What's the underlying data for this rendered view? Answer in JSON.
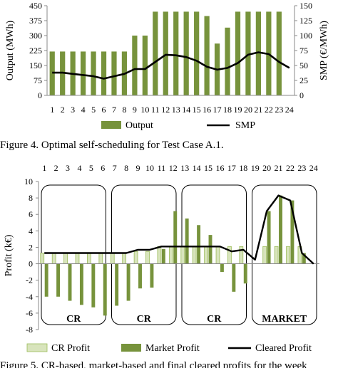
{
  "figure4_caption": "Figure 4. Optimal self-scheduling for Test Case A.1.",
  "figure5_caption": "Figure 5. CR-based, market-based and final cleared profits for the week",
  "chart_data": [
    {
      "type": "bar",
      "categories": [
        "1",
        "2",
        "3",
        "4",
        "5",
        "6",
        "7",
        "8",
        "9",
        "10",
        "11",
        "12",
        "13",
        "14",
        "15",
        "16",
        "17",
        "18",
        "19",
        "20",
        "21",
        "22",
        "23",
        "24"
      ],
      "series": [
        {
          "name": "Output",
          "type": "bar",
          "axis": "left",
          "color": "#77933c",
          "values": [
            220,
            220,
            220,
            220,
            220,
            220,
            220,
            220,
            300,
            300,
            420,
            420,
            420,
            420,
            420,
            398,
            260,
            340,
            420,
            420,
            420,
            420,
            420,
            0
          ]
        },
        {
          "name": "SMP",
          "type": "line",
          "axis": "right",
          "color": "#000000",
          "values": [
            38,
            38,
            36,
            34,
            32,
            28,
            32,
            36,
            44,
            44,
            56,
            68,
            67,
            64,
            58,
            48,
            43,
            46,
            54,
            68,
            72,
            69,
            56,
            46
          ]
        }
      ],
      "ylabel": "Output (MWh)",
      "ylabel_right": "SMP (€/MWh)",
      "ylim": [
        0,
        450
      ],
      "yticks": [
        0,
        75,
        150,
        225,
        300,
        375,
        450
      ],
      "ylim_right": [
        0,
        150
      ],
      "yticks_right": [
        0,
        25,
        50,
        75,
        100,
        125,
        150
      ],
      "legend_placement": "bottom"
    },
    {
      "type": "bar",
      "categories": [
        "1",
        "2",
        "3",
        "4",
        "5",
        "6",
        "7",
        "8",
        "9",
        "10",
        "11",
        "12",
        "13",
        "14",
        "15",
        "16",
        "17",
        "18",
        "19",
        "20",
        "21",
        "22",
        "23",
        "24"
      ],
      "series": [
        {
          "name": "CR Profit",
          "type": "bar",
          "color": "#d8e4bc",
          "values": [
            1.3,
            1.3,
            1.3,
            1.3,
            1.3,
            1.3,
            1.3,
            1.3,
            1.5,
            1.5,
            2.1,
            2.1,
            2.1,
            2.1,
            2.1,
            2.1,
            2.1,
            2.1,
            0,
            2.1,
            2.1,
            2.1,
            2.1,
            0
          ]
        },
        {
          "name": "Market Profit",
          "type": "bar",
          "color": "#77933c",
          "values": [
            -4.0,
            -4.0,
            -4.5,
            -5.0,
            -5.3,
            -6.3,
            -5.1,
            -4.5,
            -3.0,
            -2.9,
            1.8,
            6.4,
            5.5,
            4.7,
            3.5,
            -1.0,
            -3.4,
            -2.4,
            0,
            6.4,
            8.3,
            7.7,
            1.3,
            0
          ]
        },
        {
          "name": "Cleared Profit",
          "type": "line",
          "color": "#000000",
          "values": [
            1.3,
            1.3,
            1.3,
            1.3,
            1.3,
            1.3,
            1.3,
            1.3,
            1.7,
            1.7,
            2.1,
            2.1,
            2.1,
            2.1,
            2.1,
            2.1,
            1.5,
            1.7,
            0.5,
            6.4,
            8.3,
            7.7,
            1.3,
            0
          ]
        }
      ],
      "ylabel": "Profit (k€)",
      "ylim": [
        -8,
        10
      ],
      "yticks": [
        -8,
        -6,
        -4,
        -2,
        0,
        2,
        4,
        6,
        8,
        10
      ],
      "x_axis_position": "top",
      "groups": [
        {
          "label": "CR",
          "from": 1,
          "to": 6
        },
        {
          "label": "CR",
          "from": 7,
          "to": 12
        },
        {
          "label": "CR",
          "from": 13,
          "to": 18
        },
        {
          "label": "MARKET",
          "from": 19,
          "to": 24
        }
      ],
      "legend_placement": "bottom"
    }
  ]
}
